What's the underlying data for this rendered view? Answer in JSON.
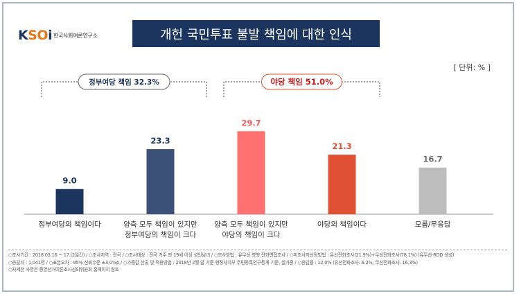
{
  "logo": {
    "text_pre": "K",
    "text_mid": "SO",
    "text_post": "i",
    "subtitle": "한국사회여론연구소"
  },
  "title": "개헌 국민투표 불발 책임에 대한 인식",
  "unit": "[ 단위: % ]",
  "groups": [
    {
      "label": "정부여당 책임",
      "value": "32.3%",
      "emphasis": false
    },
    {
      "label": "야당 책임",
      "value": "51.0%",
      "emphasis": true
    }
  ],
  "chart_data": {
    "type": "bar",
    "categories": [
      [
        "정부여당의 책임이다"
      ],
      [
        "양측 모두 책임이 있지만",
        "정부여당의 책임이 크다"
      ],
      [
        "양측 모두 책임이 있지만",
        "야당의 책임이 크다"
      ],
      [
        "야당의 책임이다"
      ],
      [
        "모름/무응답"
      ]
    ],
    "values": [
      9.0,
      23.3,
      29.7,
      21.3,
      16.7
    ],
    "value_labels": [
      "9.0",
      "23.3",
      "29.7",
      "21.3",
      "16.7"
    ],
    "colors": [
      "#1b355f",
      "#3c5279",
      "#ff7070",
      "#e05033",
      "#bdbdbd"
    ],
    "label_colors": [
      "#1b355f",
      "#1b355f",
      "#ff5a5a",
      "#e05033",
      "#6b6b6b"
    ],
    "ylim": [
      0,
      32
    ]
  },
  "footer": {
    "line1": "○조사기간 : 2018.03.16 ~ 17.(2일간) / ○조사지역 : 전국 / ○조사대상 : 전국 거주 만 19세 이상 성인남녀 / ○조사방법 : 유무선 병행 전화면접조사 / ○피조사자선정방법 : 유선전화조사(21.9%)+무선전화조사(78.1%) (유무선-RDD 생성)",
    "line2": "○응답자 : 1,041명 / ○표본오차 : 95% 신뢰수준 ±3.0%p / ○가중값 산출 및 적용방법 : 2018년 2월 말 기준 행정자치부 주민등록인구통계 기준, 셀가중 / ○응답률 : 12.0% (유선전화조사: 6.2%, 무선전화조사: 16.3%)",
    "line3": "○자세한 사항은 중앙선거여론조사심의위원회 홈페이지 참조"
  }
}
